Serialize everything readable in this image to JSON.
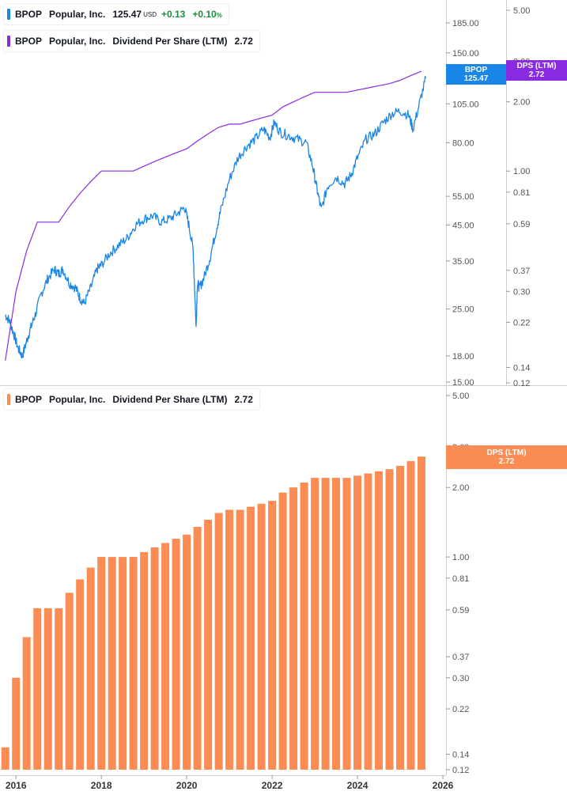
{
  "colors": {
    "price_line": "#1a86e8",
    "dps_line": "#8a2be2",
    "bar": "#fb8c54",
    "up": "#1e8a3b",
    "grid": "#e5e5e5",
    "axis_text": "#555555"
  },
  "top_legend": {
    "ticker": "BPOP",
    "name": "Popular, Inc.",
    "price": "125.47",
    "currency": "USD",
    "change": "+0.13",
    "change_pct": "+0.10",
    "pct_sign": "%"
  },
  "dps_legend": {
    "ticker": "BPOP",
    "name": "Popular, Inc.",
    "metric": "Dividend Per Share (LTM)",
    "value": "2.72"
  },
  "bottom_legend": {
    "ticker": "BPOP",
    "name": "Popular, Inc.",
    "metric": "Dividend Per Share (LTM)",
    "value": "2.72"
  },
  "tags": {
    "price": {
      "label": "BPOP",
      "value": "125.47"
    },
    "dps_top": {
      "label": "DPS (LTM)",
      "value": "2.72"
    },
    "dps_bottom": {
      "label": "DPS (LTM)",
      "value": "2.72"
    }
  },
  "chart_data": [
    {
      "type": "line",
      "title": "",
      "scale": "log",
      "series": [
        {
          "name": "BPOP",
          "axis": "left",
          "x": [
            2015.75,
            2015.85,
            2015.95,
            2016.05,
            2016.15,
            2016.25,
            2016.35,
            2016.45,
            2016.6,
            2016.75,
            2016.9,
            2017.0,
            2017.1,
            2017.25,
            2017.4,
            2017.5,
            2017.6,
            2017.75,
            2017.9,
            2018.0,
            2018.2,
            2018.4,
            2018.6,
            2018.8,
            2019.0,
            2019.2,
            2019.4,
            2019.6,
            2019.8,
            2019.95,
            2020.05,
            2020.15,
            2020.22,
            2020.25,
            2020.3,
            2020.4,
            2020.55,
            2020.7,
            2020.8,
            2021.0,
            2021.2,
            2021.4,
            2021.6,
            2021.8,
            2021.95,
            2022.05,
            2022.2,
            2022.4,
            2022.6,
            2022.8,
            2022.95,
            2023.05,
            2023.15,
            2023.3,
            2023.5,
            2023.7,
            2023.85,
            2024.0,
            2024.2,
            2024.4,
            2024.6,
            2024.8,
            2025.0,
            2025.2,
            2025.3,
            2025.45,
            2025.6
          ],
          "y": [
            24,
            23,
            21,
            19,
            18,
            20,
            22,
            24,
            28,
            31,
            33,
            32,
            33,
            30,
            29,
            27,
            26,
            29,
            33,
            34,
            37,
            39,
            41,
            45,
            47,
            48,
            46,
            47,
            49,
            51,
            45,
            38,
            22,
            30,
            29,
            31,
            36,
            44,
            50,
            62,
            72,
            78,
            82,
            88,
            83,
            92,
            86,
            84,
            82,
            80,
            68,
            58,
            50,
            59,
            63,
            60,
            64,
            72,
            82,
            85,
            92,
            98,
            100,
            97,
            88,
            105,
            125.47
          ]
        },
        {
          "name": "Dividend Per Share (LTM)",
          "axis": "right",
          "x": [
            2015.75,
            2016.0,
            2016.25,
            2016.5,
            2016.75,
            2017.0,
            2017.25,
            2017.5,
            2017.75,
            2018.0,
            2018.25,
            2018.5,
            2018.75,
            2019.0,
            2019.25,
            2019.5,
            2019.75,
            2020.0,
            2020.25,
            2020.5,
            2020.75,
            2021.0,
            2021.25,
            2021.5,
            2021.75,
            2022.0,
            2022.25,
            2022.5,
            2022.75,
            2023.0,
            2023.25,
            2023.5,
            2023.75,
            2024.0,
            2024.25,
            2024.5,
            2024.75,
            2025.0,
            2025.25,
            2025.5
          ],
          "y": [
            0.15,
            0.3,
            0.45,
            0.6,
            0.6,
            0.6,
            0.7,
            0.8,
            0.9,
            1.0,
            1.0,
            1.0,
            1.0,
            1.05,
            1.1,
            1.15,
            1.2,
            1.25,
            1.35,
            1.45,
            1.55,
            1.6,
            1.6,
            1.65,
            1.7,
            1.75,
            1.9,
            2.0,
            2.1,
            2.2,
            2.2,
            2.2,
            2.2,
            2.25,
            2.3,
            2.35,
            2.4,
            2.48,
            2.6,
            2.72
          ]
        }
      ],
      "left_axis_ticks": [
        "185.00",
        "150.00",
        "105.00",
        "80.00",
        "55.00",
        "45.00",
        "35.00",
        "25.00",
        "18.00",
        "15.00"
      ],
      "right_axis_ticks": [
        "5.00",
        "3.00",
        "2.00",
        "1.00",
        "0.81",
        "0.59",
        "0.37",
        "0.30",
        "0.22",
        "0.14",
        "0.12"
      ],
      "left_ylim": [
        15,
        210
      ],
      "right_ylim": [
        0.12,
        5.0
      ],
      "grid": false
    },
    {
      "type": "bar",
      "title": "",
      "scale": "log",
      "series": [
        {
          "name": "Dividend Per Share (LTM)",
          "x": [
            2015.75,
            2016.0,
            2016.25,
            2016.5,
            2016.75,
            2017.0,
            2017.25,
            2017.5,
            2017.75,
            2018.0,
            2018.25,
            2018.5,
            2018.75,
            2019.0,
            2019.25,
            2019.5,
            2019.75,
            2020.0,
            2020.25,
            2020.5,
            2020.75,
            2021.0,
            2021.25,
            2021.5,
            2021.75,
            2022.0,
            2022.25,
            2022.5,
            2022.75,
            2023.0,
            2023.25,
            2023.5,
            2023.75,
            2024.0,
            2024.25,
            2024.5,
            2024.75,
            2025.0,
            2025.25,
            2025.5
          ],
          "values": [
            0.15,
            0.3,
            0.45,
            0.6,
            0.6,
            0.6,
            0.7,
            0.8,
            0.9,
            1.0,
            1.0,
            1.0,
            1.0,
            1.05,
            1.1,
            1.15,
            1.2,
            1.25,
            1.35,
            1.45,
            1.55,
            1.6,
            1.6,
            1.65,
            1.7,
            1.75,
            1.9,
            2.0,
            2.1,
            2.2,
            2.2,
            2.2,
            2.2,
            2.25,
            2.3,
            2.35,
            2.4,
            2.48,
            2.6,
            2.72
          ]
        }
      ],
      "y_axis_ticks": [
        "5.00",
        "3.00",
        "2.00",
        "1.00",
        "0.81",
        "0.59",
        "0.37",
        "0.30",
        "0.22",
        "0.14",
        "0.12"
      ],
      "ylim": [
        0.12,
        5.0
      ],
      "x_ticks": [
        "2016",
        "2018",
        "2020",
        "2022",
        "2024",
        "2026"
      ],
      "xlim": [
        2015.7,
        2026.0
      ],
      "grid": false
    }
  ]
}
